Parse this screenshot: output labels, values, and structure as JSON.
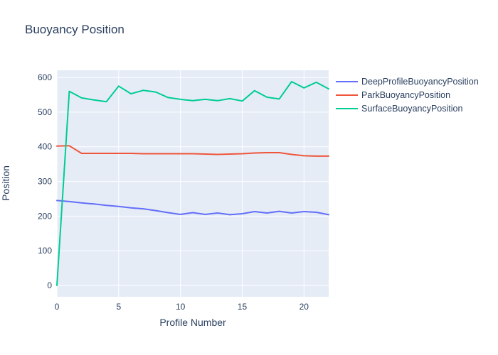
{
  "chart_data": {
    "type": "line",
    "title": "Buoyancy Position",
    "xlabel": "Profile Number",
    "ylabel": "Position",
    "x": [
      0,
      1,
      2,
      3,
      4,
      5,
      6,
      7,
      8,
      9,
      10,
      11,
      12,
      13,
      14,
      15,
      16,
      17,
      18,
      19,
      20,
      21,
      22
    ],
    "series": [
      {
        "name": "DeepProfileBuoyancyPosition",
        "color": "#636EFA",
        "values": [
          245,
          242,
          238,
          235,
          231,
          228,
          224,
          221,
          216,
          210,
          205,
          210,
          205,
          209,
          204,
          207,
          213,
          209,
          214,
          209,
          213,
          211,
          204
        ]
      },
      {
        "name": "ParkBuoyancyPosition",
        "color": "#EF553B",
        "values": [
          402,
          403,
          381,
          381,
          381,
          381,
          381,
          380,
          380,
          380,
          380,
          380,
          379,
          378,
          379,
          380,
          382,
          383,
          383,
          378,
          374,
          373,
          373
        ]
      },
      {
        "name": "SurfaceBuoyancyPosition",
        "color": "#00CC96",
        "values": [
          0,
          560,
          541,
          535,
          530,
          575,
          553,
          563,
          558,
          542,
          537,
          533,
          537,
          533,
          539,
          532,
          562,
          543,
          538,
          588,
          570,
          586,
          567
        ]
      }
    ],
    "xticks": [
      "0",
      "5",
      "10",
      "15",
      "20"
    ],
    "xtick_values": [
      0,
      5,
      10,
      15,
      20
    ],
    "yticks": [
      "0",
      "100",
      "200",
      "300",
      "400",
      "500",
      "600"
    ],
    "ytick_values": [
      0,
      100,
      200,
      300,
      400,
      500,
      600
    ],
    "xlim": [
      0,
      22
    ],
    "ylim": [
      -32.7,
      620.7
    ],
    "grid": true,
    "legend_position": "right",
    "colors": {
      "plot_background": "#E5ECF6",
      "grid": "#FFFFFF",
      "text": "#2A3F5F"
    }
  }
}
